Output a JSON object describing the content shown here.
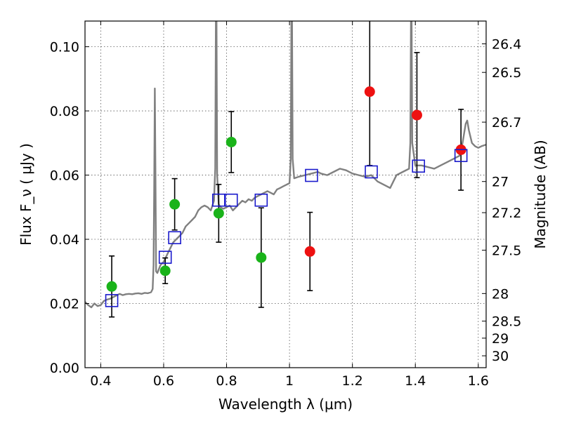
{
  "chart_data": {
    "type": "scatter",
    "xlabel": "Wavelength  λ (μm)",
    "ylabel": "Flux  F_ν  ( μJy )",
    "y2label": "Magnitude (AB)",
    "xlim": [
      0.35,
      1.625
    ],
    "ylim": [
      0.0,
      0.108
    ],
    "grid": true,
    "x_ticks": [
      0.4,
      0.6,
      0.8,
      1.0,
      1.2,
      1.4,
      1.6
    ],
    "x_tick_labels": [
      "0.4",
      "0.6",
      "0.8",
      "1",
      "1.2",
      "1.4",
      "1.6"
    ],
    "y_ticks": [
      0.0,
      0.02,
      0.04,
      0.06,
      0.08,
      0.1
    ],
    "y_tick_labels": [
      "0.00",
      "0.02",
      "0.04",
      "0.06",
      "0.08",
      "0.10"
    ],
    "magnitude_ticks": [
      {
        "label": "26.4",
        "flux": 0.1009
      },
      {
        "label": "26.5",
        "flux": 0.092
      },
      {
        "label": "26.7",
        "flux": 0.0765
      },
      {
        "label": "27",
        "flux": 0.058
      },
      {
        "label": "27.2",
        "flux": 0.0483
      },
      {
        "label": "27.5",
        "flux": 0.0366
      },
      {
        "label": "28",
        "flux": 0.0231
      },
      {
        "label": "28.5",
        "flux": 0.0145
      },
      {
        "label": "29",
        "flux": 0.0092
      },
      {
        "label": "30",
        "flux": 0.0037
      }
    ],
    "series": [
      {
        "color": "#1ab31a",
        "marker": "circle",
        "points": [
          {
            "x": 0.435,
            "y": 0.0253,
            "err": 0.0095
          },
          {
            "x": 0.605,
            "y": 0.0302,
            "err": 0.004
          },
          {
            "x": 0.635,
            "y": 0.0509,
            "err": 0.008
          },
          {
            "x": 0.775,
            "y": 0.0481,
            "err": 0.009
          },
          {
            "x": 0.815,
            "y": 0.0703,
            "err": 0.0095
          },
          {
            "x": 0.91,
            "y": 0.0343,
            "err": 0.0155
          }
        ]
      },
      {
        "color": "#ee1111",
        "marker": "circle",
        "points": [
          {
            "x": 1.065,
            "y": 0.0362,
            "err": 0.0122
          },
          {
            "x": 1.255,
            "y": 0.086,
            "err": 0.023
          },
          {
            "x": 1.405,
            "y": 0.0787,
            "err": 0.0195
          },
          {
            "x": 1.545,
            "y": 0.0679,
            "err": 0.0126
          }
        ]
      },
      {
        "color": "#1a1acc",
        "marker": "open-square",
        "points": [
          {
            "x": 0.435,
            "y": 0.0209
          },
          {
            "x": 0.605,
            "y": 0.0344
          },
          {
            "x": 0.635,
            "y": 0.0405
          },
          {
            "x": 0.775,
            "y": 0.0522
          },
          {
            "x": 0.815,
            "y": 0.0522
          },
          {
            "x": 0.91,
            "y": 0.0522
          },
          {
            "x": 1.07,
            "y": 0.0599
          },
          {
            "x": 1.26,
            "y": 0.061
          },
          {
            "x": 1.41,
            "y": 0.0628
          },
          {
            "x": 1.545,
            "y": 0.0661
          }
        ]
      }
    ],
    "model_spectrum": {
      "color": "#808080",
      "points": [
        [
          0.35,
          0.0205
        ],
        [
          0.36,
          0.0195
        ],
        [
          0.37,
          0.0188
        ],
        [
          0.38,
          0.02
        ],
        [
          0.39,
          0.0192
        ],
        [
          0.4,
          0.0195
        ],
        [
          0.41,
          0.0208
        ],
        [
          0.42,
          0.0212
        ],
        [
          0.43,
          0.0215
        ],
        [
          0.44,
          0.022
        ],
        [
          0.45,
          0.0225
        ],
        [
          0.46,
          0.023
        ],
        [
          0.47,
          0.0226
        ],
        [
          0.48,
          0.0229
        ],
        [
          0.49,
          0.023
        ],
        [
          0.5,
          0.0229
        ],
        [
          0.51,
          0.0231
        ],
        [
          0.52,
          0.0232
        ],
        [
          0.53,
          0.023
        ],
        [
          0.54,
          0.0233
        ],
        [
          0.55,
          0.0232
        ],
        [
          0.56,
          0.0235
        ],
        [
          0.565,
          0.0245
        ],
        [
          0.568,
          0.032
        ],
        [
          0.57,
          0.056
        ],
        [
          0.572,
          0.087
        ],
        [
          0.574,
          0.06
        ],
        [
          0.576,
          0.03
        ],
        [
          0.58,
          0.0295
        ],
        [
          0.59,
          0.032
        ],
        [
          0.6,
          0.033
        ],
        [
          0.61,
          0.035
        ],
        [
          0.62,
          0.037
        ],
        [
          0.63,
          0.039
        ],
        [
          0.64,
          0.04
        ],
        [
          0.65,
          0.041
        ],
        [
          0.66,
          0.042
        ],
        [
          0.67,
          0.044
        ],
        [
          0.68,
          0.045
        ],
        [
          0.69,
          0.046
        ],
        [
          0.7,
          0.047
        ],
        [
          0.71,
          0.049
        ],
        [
          0.72,
          0.05
        ],
        [
          0.73,
          0.0505
        ],
        [
          0.74,
          0.05
        ],
        [
          0.75,
          0.049
        ],
        [
          0.76,
          0.052
        ],
        [
          0.764,
          0.062
        ],
        [
          0.766,
          0.108
        ],
        [
          0.768,
          0.108
        ],
        [
          0.77,
          0.06
        ],
        [
          0.775,
          0.051
        ],
        [
          0.78,
          0.05
        ],
        [
          0.79,
          0.0495
        ],
        [
          0.8,
          0.05
        ],
        [
          0.81,
          0.0505
        ],
        [
          0.82,
          0.049
        ],
        [
          0.83,
          0.05
        ],
        [
          0.84,
          0.051
        ],
        [
          0.85,
          0.052
        ],
        [
          0.86,
          0.0515
        ],
        [
          0.87,
          0.0525
        ],
        [
          0.88,
          0.052
        ],
        [
          0.89,
          0.053
        ],
        [
          0.9,
          0.0535
        ],
        [
          0.91,
          0.054
        ],
        [
          0.92,
          0.0545
        ],
        [
          0.93,
          0.055
        ],
        [
          0.94,
          0.0545
        ],
        [
          0.95,
          0.054
        ],
        [
          0.96,
          0.0555
        ],
        [
          0.97,
          0.056
        ],
        [
          0.98,
          0.0565
        ],
        [
          0.99,
          0.057
        ],
        [
          1.0,
          0.0575
        ],
        [
          1.004,
          0.065
        ],
        [
          1.006,
          0.108
        ],
        [
          1.008,
          0.108
        ],
        [
          1.01,
          0.065
        ],
        [
          1.015,
          0.059
        ],
        [
          1.03,
          0.0595
        ],
        [
          1.05,
          0.06
        ],
        [
          1.07,
          0.0605
        ],
        [
          1.09,
          0.061
        ],
        [
          1.1,
          0.0605
        ],
        [
          1.12,
          0.06
        ],
        [
          1.14,
          0.061
        ],
        [
          1.16,
          0.062
        ],
        [
          1.18,
          0.0615
        ],
        [
          1.2,
          0.0605
        ],
        [
          1.22,
          0.06
        ],
        [
          1.24,
          0.0595
        ],
        [
          1.26,
          0.06
        ],
        [
          1.28,
          0.058
        ],
        [
          1.3,
          0.057
        ],
        [
          1.32,
          0.056
        ],
        [
          1.33,
          0.058
        ],
        [
          1.34,
          0.06
        ],
        [
          1.36,
          0.061
        ],
        [
          1.38,
          0.062
        ],
        [
          1.384,
          0.07
        ],
        [
          1.386,
          0.108
        ],
        [
          1.388,
          0.108
        ],
        [
          1.39,
          0.07
        ],
        [
          1.4,
          0.063
        ],
        [
          1.42,
          0.063
        ],
        [
          1.44,
          0.0625
        ],
        [
          1.46,
          0.062
        ],
        [
          1.48,
          0.063
        ],
        [
          1.5,
          0.064
        ],
        [
          1.52,
          0.065
        ],
        [
          1.54,
          0.066
        ],
        [
          1.55,
          0.07
        ],
        [
          1.56,
          0.076
        ],
        [
          1.565,
          0.077
        ],
        [
          1.57,
          0.074
        ],
        [
          1.58,
          0.07
        ],
        [
          1.59,
          0.069
        ],
        [
          1.6,
          0.0685
        ],
        [
          1.61,
          0.069
        ],
        [
          1.625,
          0.0695
        ]
      ]
    }
  }
}
